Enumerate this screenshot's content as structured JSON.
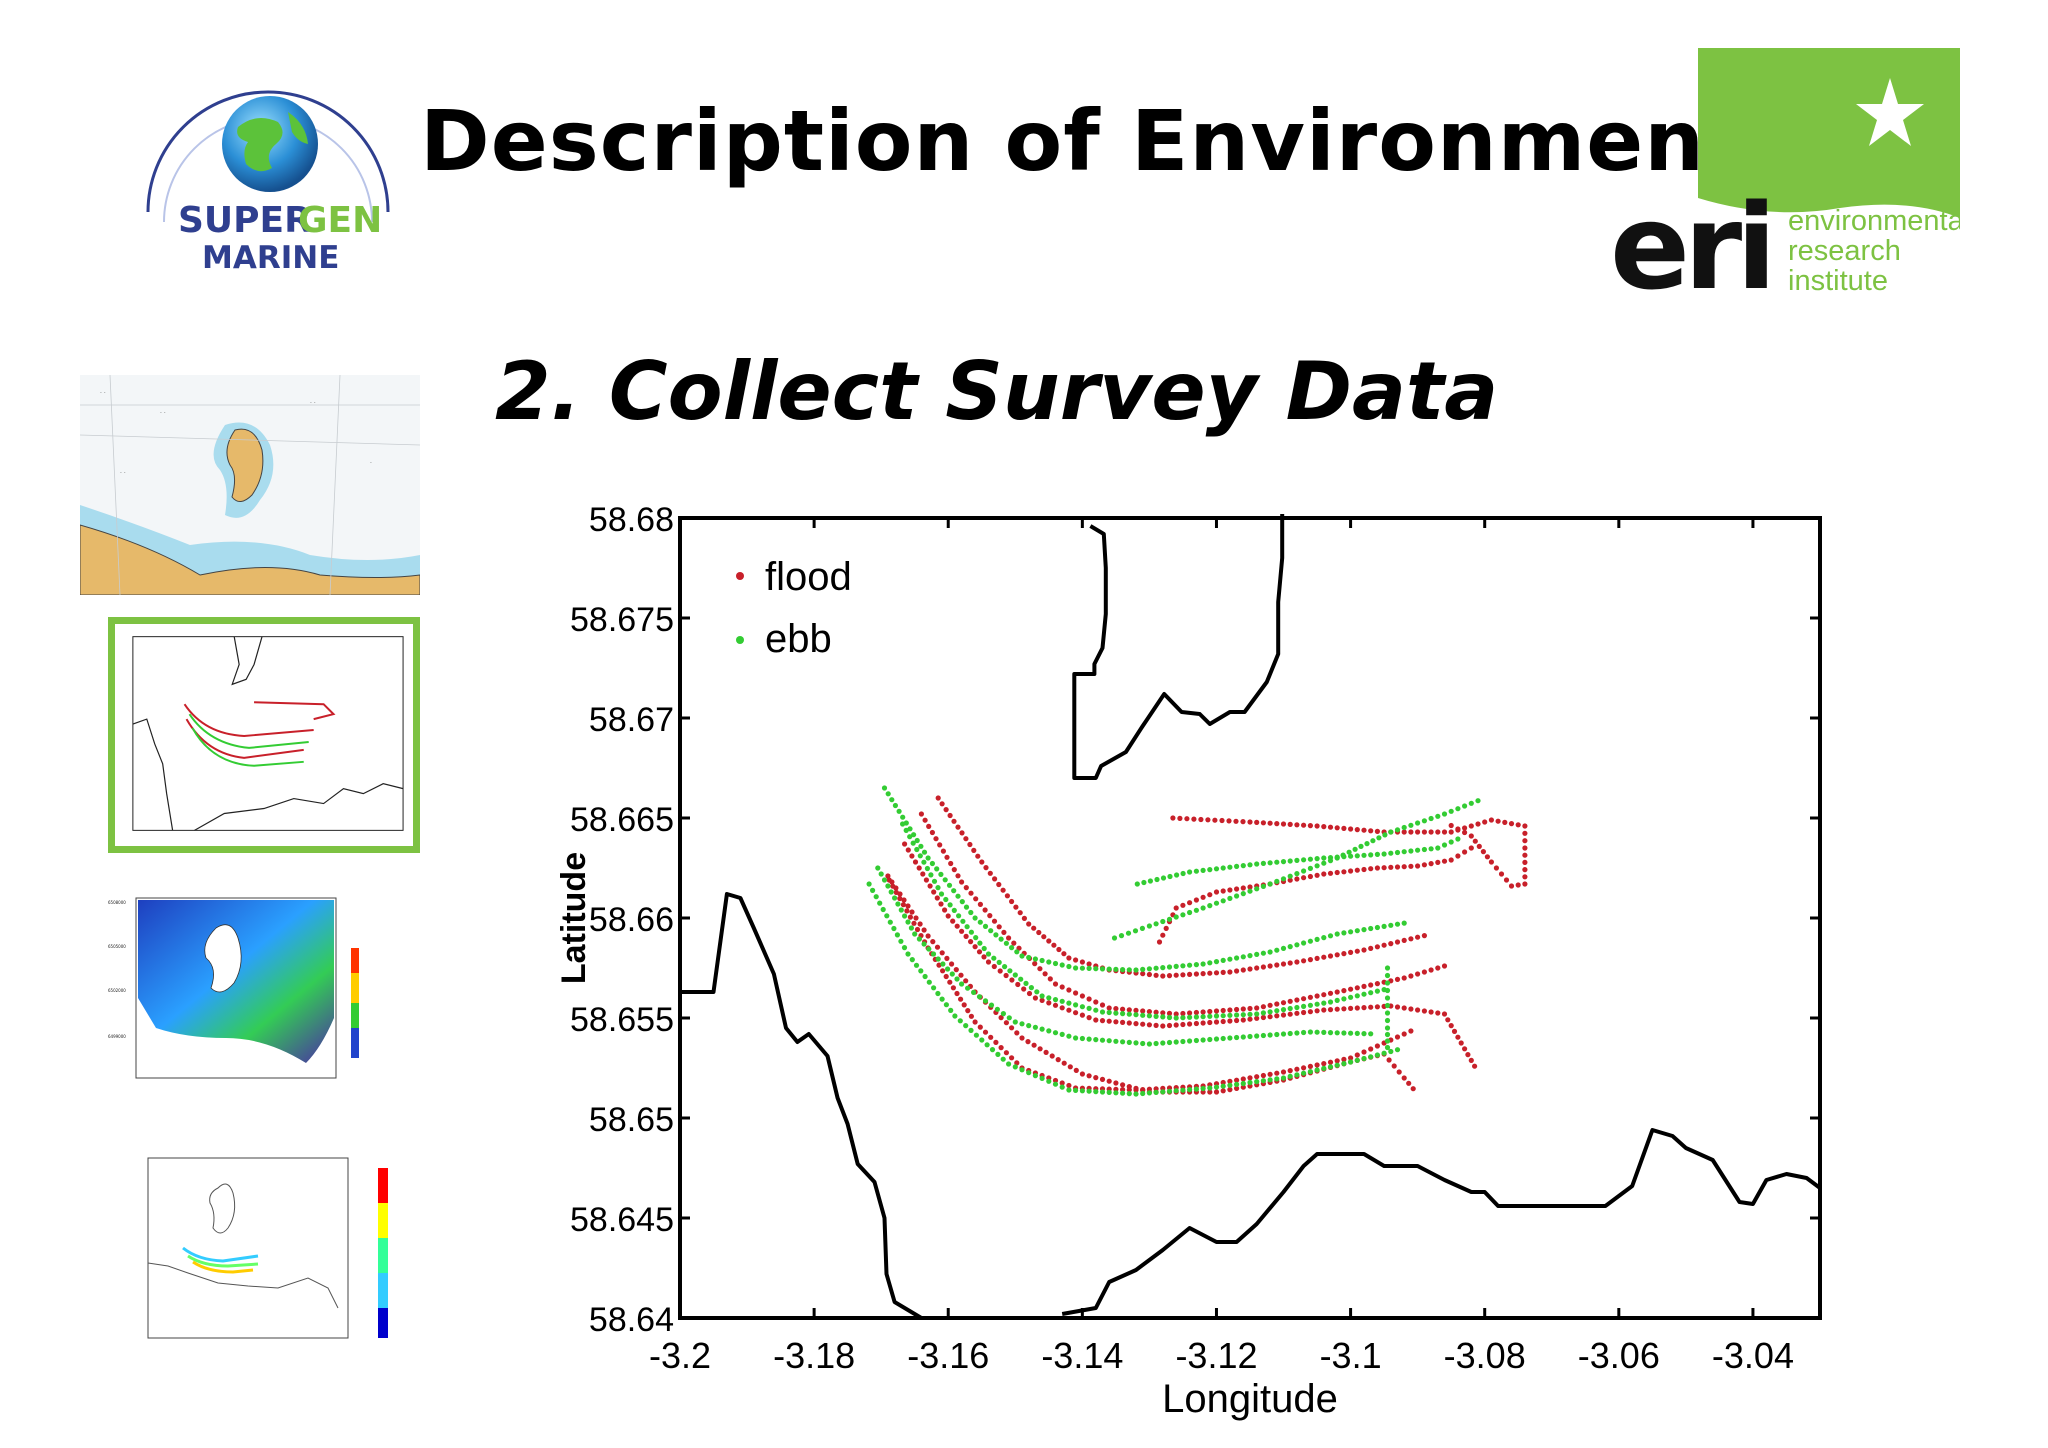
{
  "slide": {
    "title": "Description of Environment",
    "subtitle": "2. Collect Survey Data"
  },
  "logos": {
    "supergen_line1a": "SUPER",
    "supergen_line1b": "GEN",
    "supergen_line2": "MARINE",
    "eri_mark": "eri",
    "eri_line1": "environmental",
    "eri_line2": "research",
    "eri_line3": "institute"
  },
  "colors": {
    "flood": "#c8202a",
    "ebb": "#33cc33",
    "coast": "#000000",
    "eri_green": "#7dc242",
    "supergen_blue": "#2f3f8f"
  },
  "chart_data": {
    "type": "scatter",
    "xlabel": "Longitude",
    "ylabel": "Latitude",
    "xlim": [
      -3.2,
      -3.03
    ],
    "ylim": [
      58.64,
      58.68
    ],
    "xticks": [
      "-3.2",
      "-3.18",
      "-3.16",
      "-3.14",
      "-3.12",
      "-3.1",
      "-3.08",
      "-3.06",
      "-3.04"
    ],
    "xtick_values": [
      -3.2,
      -3.18,
      -3.16,
      -3.14,
      -3.12,
      -3.1,
      -3.08,
      -3.06,
      -3.04
    ],
    "yticks": [
      "58.68",
      "58.675",
      "58.67",
      "58.665",
      "58.66",
      "58.655",
      "58.65",
      "58.645",
      "58.64"
    ],
    "ytick_values": [
      58.68,
      58.675,
      58.67,
      58.665,
      58.66,
      58.655,
      58.65,
      58.645,
      58.64
    ],
    "legend": {
      "placement": "top-left",
      "entries": [
        "flood",
        "ebb"
      ]
    },
    "grid": false,
    "coastlines": [
      [
        [
          -3.2,
          58.6563
        ],
        [
          -3.195,
          58.6563
        ],
        [
          -3.193,
          58.6612
        ],
        [
          -3.191,
          58.661
        ],
        [
          -3.189,
          58.6595
        ],
        [
          -3.186,
          58.6572
        ],
        [
          -3.1842,
          58.6545
        ],
        [
          -3.1825,
          58.6538
        ],
        [
          -3.1808,
          58.6542
        ],
        [
          -3.178,
          58.6531
        ],
        [
          -3.1765,
          58.651
        ],
        [
          -3.175,
          58.6497
        ],
        [
          -3.1735,
          58.6477
        ],
        [
          -3.171,
          58.6468
        ],
        [
          -3.1695,
          58.645
        ],
        [
          -3.1692,
          58.6422
        ],
        [
          -3.168,
          58.6408
        ],
        [
          -3.164,
          58.64
        ]
      ],
      [
        [
          -3.143,
          58.6402
        ],
        [
          -3.138,
          58.6405
        ],
        [
          -3.136,
          58.6418
        ],
        [
          -3.132,
          58.6424
        ],
        [
          -3.128,
          58.6434
        ],
        [
          -3.124,
          58.6445
        ],
        [
          -3.12,
          58.6438
        ],
        [
          -3.117,
          58.6438
        ],
        [
          -3.114,
          58.6447
        ],
        [
          -3.11,
          58.6463
        ],
        [
          -3.107,
          58.6476
        ],
        [
          -3.105,
          58.6482
        ],
        [
          -3.098,
          58.6482
        ],
        [
          -3.095,
          58.6476
        ],
        [
          -3.09,
          58.6476
        ],
        [
          -3.086,
          58.6469
        ],
        [
          -3.082,
          58.6463
        ],
        [
          -3.08,
          58.6463
        ],
        [
          -3.078,
          58.6456
        ],
        [
          -3.062,
          58.6456
        ],
        [
          -3.058,
          58.6466
        ],
        [
          -3.055,
          58.6494
        ],
        [
          -3.052,
          58.6491
        ],
        [
          -3.05,
          58.6485
        ],
        [
          -3.046,
          58.6479
        ],
        [
          -3.042,
          58.6458
        ],
        [
          -3.04,
          58.6457
        ],
        [
          -3.038,
          58.6469
        ],
        [
          -3.035,
          58.6472
        ],
        [
          -3.032,
          58.647
        ],
        [
          -3.03,
          58.6465
        ]
      ],
      [
        [
          -3.1388,
          58.6796
        ],
        [
          -3.1368,
          58.6792
        ],
        [
          -3.1365,
          58.6775
        ],
        [
          -3.1365,
          58.6752
        ],
        [
          -3.137,
          58.6735
        ],
        [
          -3.1382,
          58.6727
        ],
        [
          -3.1382,
          58.6722
        ],
        [
          -3.1412,
          58.6722
        ],
        [
          -3.1412,
          58.6715
        ],
        [
          -3.1412,
          58.6685
        ],
        [
          -3.1412,
          58.667
        ],
        [
          -3.138,
          58.667
        ],
        [
          -3.1372,
          58.6676
        ],
        [
          -3.1335,
          58.6683
        ],
        [
          -3.131,
          58.6696
        ],
        [
          -3.1278,
          58.6712
        ],
        [
          -3.1252,
          58.6703
        ],
        [
          -3.1225,
          58.6702
        ],
        [
          -3.121,
          58.6697
        ],
        [
          -3.118,
          58.6703
        ],
        [
          -3.1158,
          58.6703
        ],
        [
          -3.1125,
          58.6718
        ],
        [
          -3.1108,
          58.6732
        ],
        [
          -3.1108,
          58.6758
        ],
        [
          -3.1102,
          58.678
        ],
        [
          -3.1102,
          58.6802
        ]
      ]
    ],
    "series": [
      {
        "name": "flood",
        "tracks": [
          [
            [
              -3.1615,
              58.666
            ],
            [
              -3.155,
              58.6628
            ],
            [
              -3.148,
              58.6597
            ],
            [
              -3.142,
              58.658
            ],
            [
              -3.136,
              58.6574
            ],
            [
              -3.128,
              58.6571
            ],
            [
              -3.118,
              58.6573
            ],
            [
              -3.108,
              58.6578
            ],
            [
              -3.098,
              58.6584
            ],
            [
              -3.088,
              58.6592
            ]
          ],
          [
            [
              -3.164,
              58.6652
            ],
            [
              -3.158,
              58.6618
            ],
            [
              -3.151,
              58.659
            ],
            [
              -3.144,
              58.6567
            ],
            [
              -3.136,
              58.6555
            ],
            [
              -3.126,
              58.6552
            ],
            [
              -3.114,
              58.6555
            ],
            [
              -3.102,
              58.6563
            ],
            [
              -3.092,
              58.657
            ],
            [
              -3.085,
              58.6577
            ]
          ],
          [
            [
              -3.1665,
              58.6637
            ],
            [
              -3.16,
              58.6601
            ],
            [
              -3.154,
              58.6578
            ],
            [
              -3.147,
              58.656
            ],
            [
              -3.138,
              58.6549
            ],
            [
              -3.128,
              58.6546
            ],
            [
              -3.116,
              58.6549
            ],
            [
              -3.104,
              58.6554
            ],
            [
              -3.094,
              58.6556
            ],
            [
              -3.086,
              58.6552
            ],
            [
              -3.081,
              58.6523
            ]
          ],
          [
            [
              -3.169,
              58.6621
            ],
            [
              -3.163,
              58.6591
            ],
            [
              -3.156,
              58.6563
            ],
            [
              -3.149,
              58.654
            ],
            [
              -3.14,
              58.6522
            ],
            [
              -3.13,
              58.6513
            ],
            [
              -3.12,
              58.6513
            ],
            [
              -3.11,
              58.6519
            ],
            [
              -3.1,
              58.6528
            ],
            [
              -3.095,
              58.6532
            ],
            [
              -3.092,
              58.652
            ],
            [
              -3.09,
              58.6512
            ]
          ],
          [
            [
              -3.1688,
              58.6619
            ],
            [
              -3.163,
              58.6585
            ],
            [
              -3.156,
              58.6548
            ],
            [
              -3.149,
              58.6525
            ],
            [
              -3.141,
              58.6515
            ],
            [
              -3.132,
              58.6514
            ],
            [
              -3.122,
              58.6516
            ],
            [
              -3.11,
              58.6523
            ],
            [
              -3.1,
              58.653
            ],
            [
              -3.09,
              58.6545
            ]
          ],
          [
            [
              -3.1265,
              58.665
            ],
            [
              -3.115,
              58.6648
            ],
            [
              -3.105,
              58.6646
            ],
            [
              -3.095,
              58.6643
            ],
            [
              -3.085,
              58.6643
            ],
            [
              -3.079,
              58.6649
            ],
            [
              -3.074,
              58.6646
            ],
            [
              -3.074,
              58.6635
            ],
            [
              -3.074,
              58.6617
            ],
            [
              -3.076,
              58.6616
            ],
            [
              -3.079,
              58.6628
            ],
            [
              -3.082,
              58.6641
            ],
            [
              -3.086,
              58.6648
            ]
          ],
          [
            [
              -3.1285,
              58.6588
            ],
            [
              -3.126,
              58.6605
            ],
            [
              -3.12,
              58.6613
            ],
            [
              -3.112,
              58.6617
            ],
            [
              -3.104,
              58.6622
            ],
            [
              -3.096,
              58.6625
            ],
            [
              -3.09,
              58.6626
            ],
            [
              -3.085,
              58.6629
            ],
            [
              -3.081,
              58.6637
            ]
          ]
        ]
      },
      {
        "name": "ebb",
        "tracks": [
          [
            [
              -3.1695,
              58.6665
            ],
            [
              -3.163,
              58.663
            ],
            [
              -3.156,
              58.66
            ],
            [
              -3.149,
              58.6581
            ],
            [
              -3.141,
              58.6575
            ],
            [
              -3.132,
              58.6574
            ],
            [
              -3.122,
              58.6577
            ],
            [
              -3.112,
              58.6583
            ],
            [
              -3.102,
              58.6592
            ],
            [
              -3.091,
              58.6598
            ]
          ],
          [
            [
              -3.1668,
              58.6647
            ],
            [
              -3.161,
              58.6612
            ],
            [
              -3.154,
              58.6582
            ],
            [
              -3.146,
              58.6561
            ],
            [
              -3.137,
              58.6553
            ],
            [
              -3.126,
              58.655
            ],
            [
              -3.114,
              58.6552
            ],
            [
              -3.103,
              58.6558
            ],
            [
              -3.094,
              58.6565
            ]
          ],
          [
            [
              -3.1705,
              58.6625
            ],
            [
              -3.165,
              58.6592
            ],
            [
              -3.158,
              58.6567
            ],
            [
              -3.15,
              58.6548
            ],
            [
              -3.141,
              58.654
            ],
            [
              -3.13,
              58.6537
            ],
            [
              -3.118,
              58.654
            ],
            [
              -3.106,
              58.6543
            ],
            [
              -3.096,
              58.6542
            ]
          ],
          [
            [
              -3.1718,
              58.6617
            ],
            [
              -3.166,
              58.6582
            ],
            [
              -3.159,
              58.6551
            ],
            [
              -3.151,
              58.6527
            ],
            [
              -3.142,
              58.6514
            ],
            [
              -3.132,
              58.6512
            ],
            [
              -3.121,
              58.6515
            ],
            [
              -3.11,
              58.652
            ],
            [
              -3.1,
              58.6528
            ],
            [
              -3.092,
              58.6535
            ]
          ],
          [
            [
              -3.1352,
              58.659
            ],
            [
              -3.13,
              58.6596
            ],
            [
              -3.122,
              58.6605
            ],
            [
              -3.112,
              58.6617
            ],
            [
              -3.102,
              58.663
            ],
            [
              -3.094,
              58.6643
            ],
            [
              -3.086,
              58.6652
            ],
            [
              -3.08,
              58.666
            ]
          ],
          [
            [
              -3.1318,
              58.6617
            ],
            [
              -3.124,
              58.6623
            ],
            [
              -3.114,
              58.6627
            ],
            [
              -3.104,
              58.663
            ],
            [
              -3.095,
              58.6632
            ],
            [
              -3.087,
              58.6635
            ],
            [
              -3.083,
              58.6641
            ]
          ],
          [
            [
              -3.0945,
              58.6575
            ],
            [
              -3.0945,
              58.656
            ],
            [
              -3.0945,
              58.6545
            ],
            [
              -3.0945,
              58.6532
            ]
          ]
        ]
      }
    ]
  }
}
